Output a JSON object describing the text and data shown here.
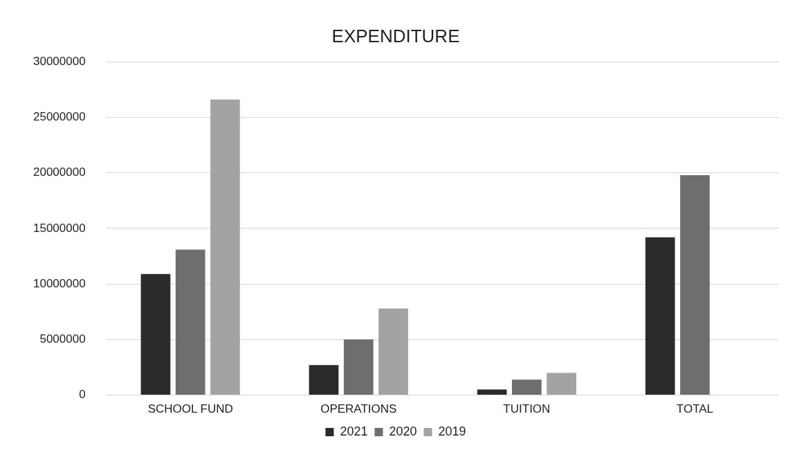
{
  "chart_data": {
    "type": "bar",
    "title": "EXPENDITURE",
    "categories": [
      "SCHOOL FUND",
      "OPERATIONS",
      "TUITION",
      "TOTAL"
    ],
    "series": [
      {
        "name": "2021",
        "color": "#2b2b2b",
        "values": [
          10900000,
          2700000,
          500000,
          14200000
        ]
      },
      {
        "name": "2020",
        "color": "#6e6e6e",
        "values": [
          13100000,
          5000000,
          1400000,
          19800000
        ]
      },
      {
        "name": "2019",
        "color": "#a3a3a3",
        "values": [
          26600000,
          7800000,
          2000000,
          null
        ]
      }
    ],
    "ylim": [
      0,
      30000000
    ],
    "yticks": [
      0,
      5000000,
      10000000,
      15000000,
      20000000,
      25000000,
      30000000
    ],
    "grid": "y",
    "legend": "bottom"
  }
}
